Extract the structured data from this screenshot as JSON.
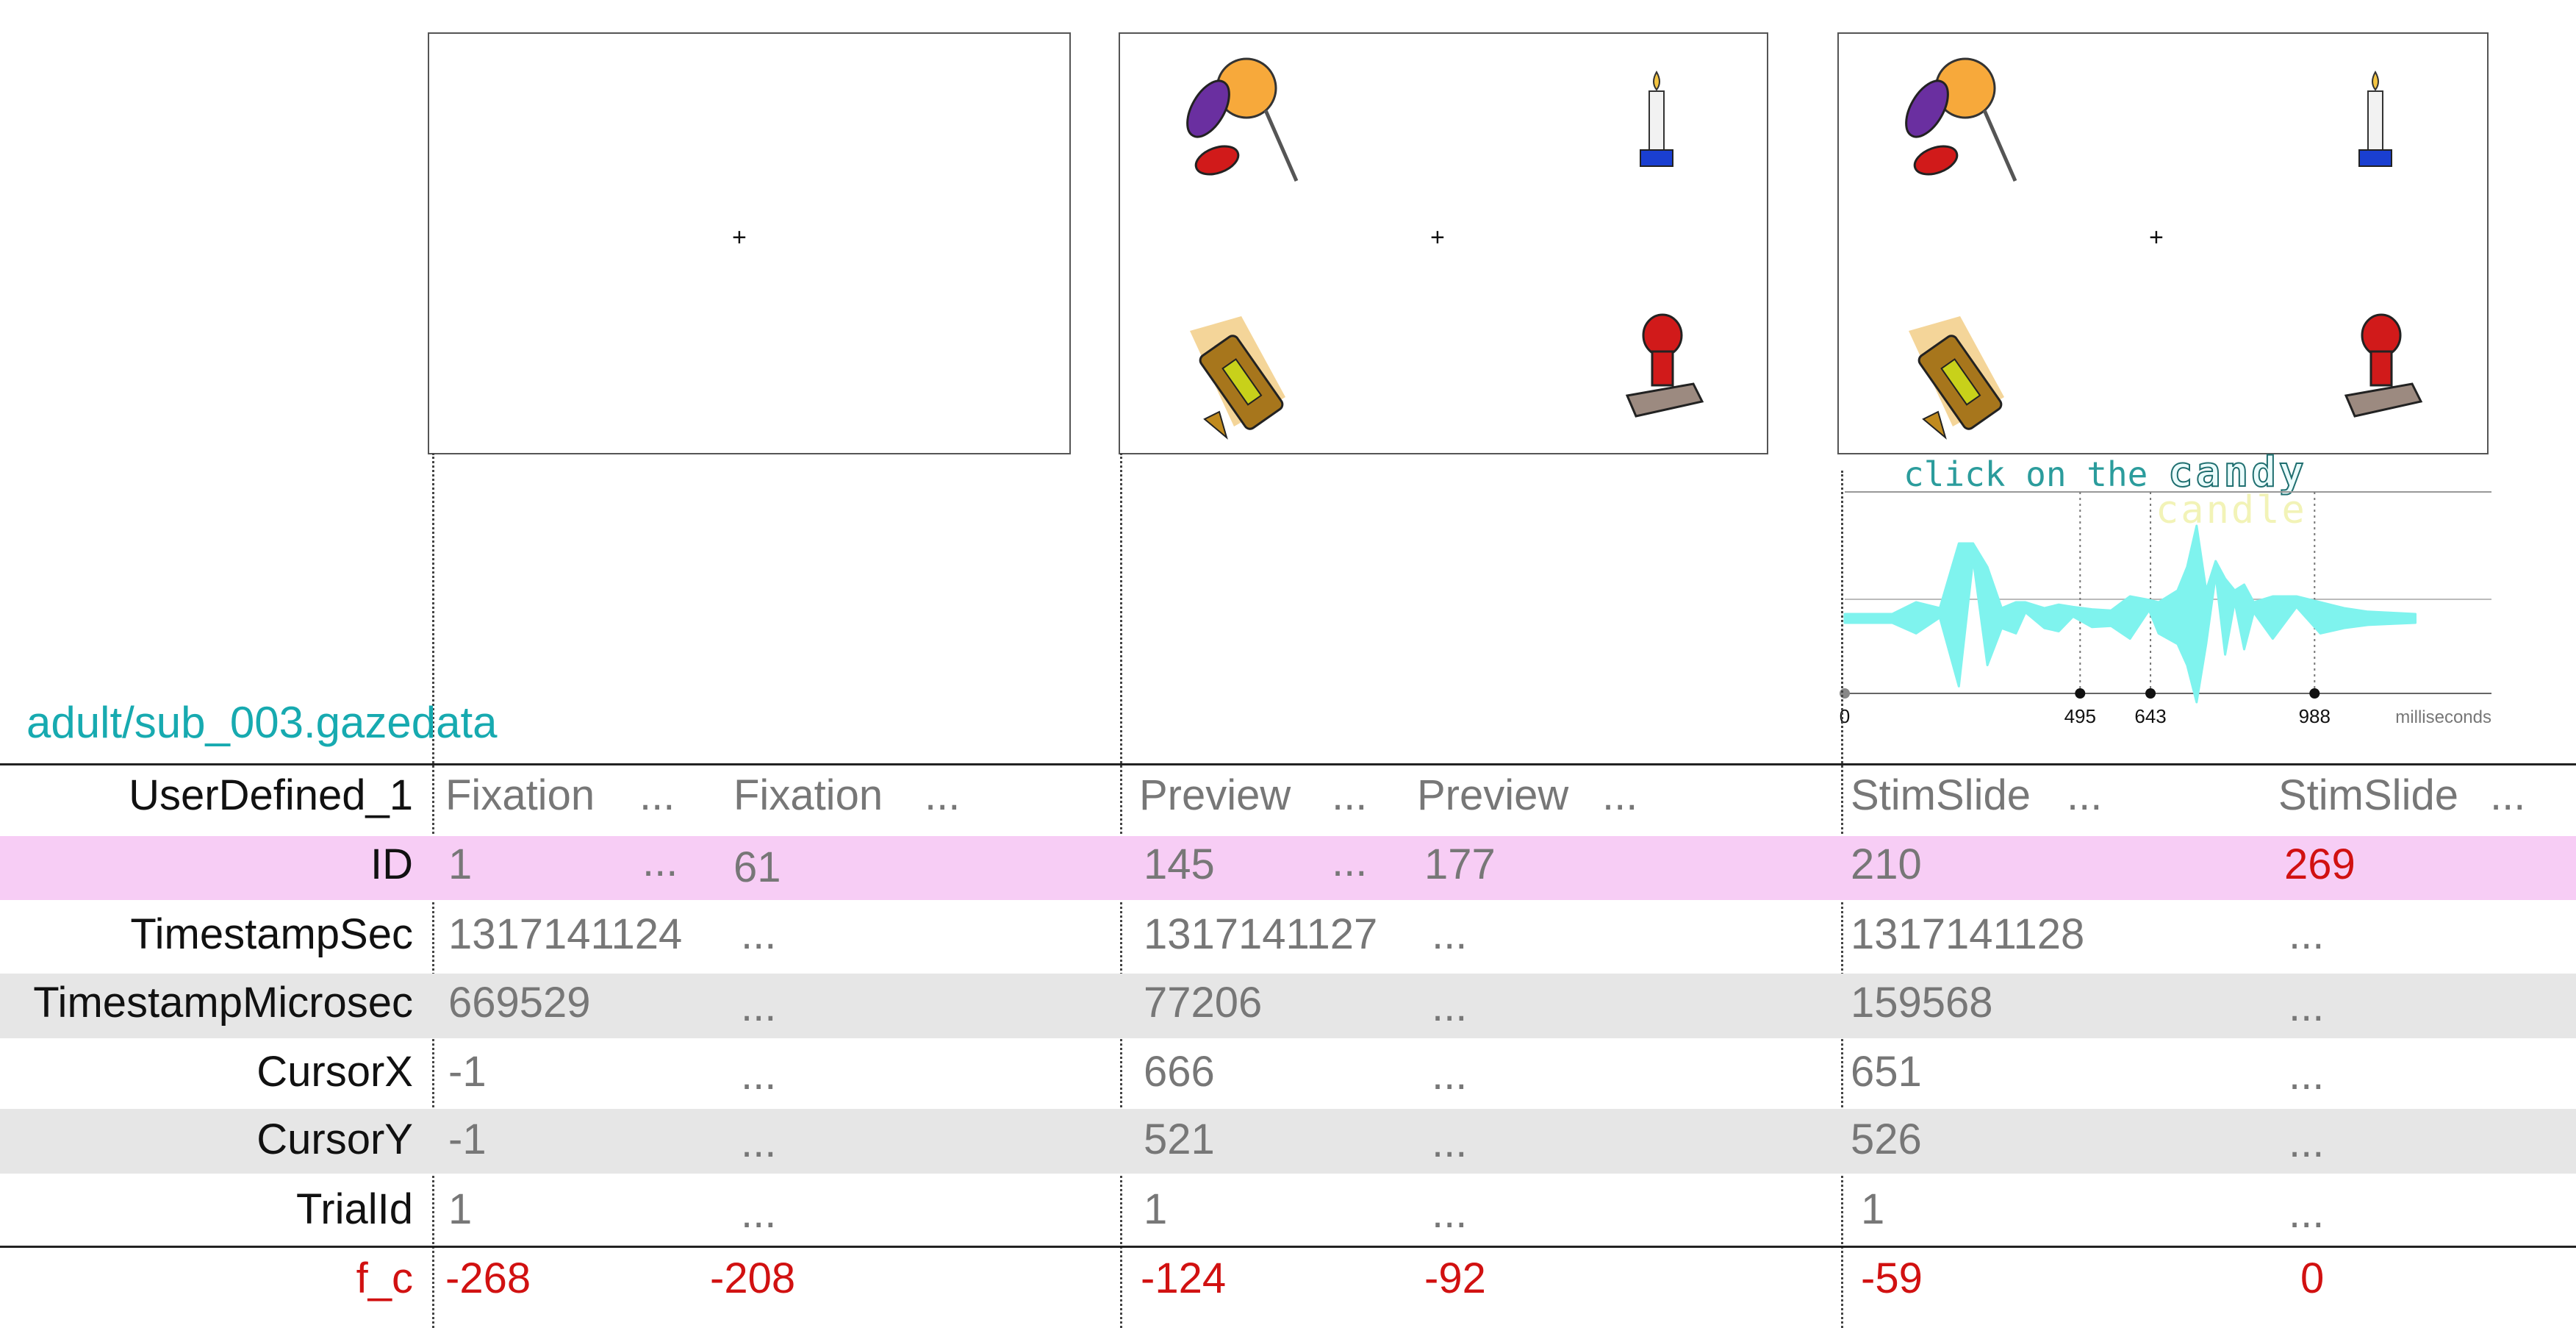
{
  "file_label": "adult/sub_003.gazedata",
  "panel3": {
    "caption": "click on the candy",
    "caption_prefix": "click on the",
    "target_word": "candy",
    "distractor_word": "candle",
    "fixation_mark": "+"
  },
  "chart_data": {
    "type": "line",
    "title": "",
    "xlabel": "milliseconds",
    "ylabel": "",
    "x_ticks": [
      "0",
      "495",
      "643",
      "988"
    ],
    "xlim": [
      0,
      1360
    ],
    "series": [
      {
        "color": "#7ff3ee",
        "x": [
          0,
          100,
          150,
          200,
          240,
          270,
          300,
          330,
          360,
          380,
          420,
          450,
          480,
          520,
          560,
          600,
          640,
          660,
          700,
          720,
          740,
          760,
          780,
          800,
          820,
          840,
          860,
          900,
          950,
          1000,
          1050,
          1100,
          1150,
          1200
        ],
        "y": [
          0,
          0,
          10,
          -5,
          60,
          -60,
          40,
          5,
          10,
          -10,
          5,
          8,
          -6,
          4,
          3,
          15,
          -12,
          10,
          20,
          40,
          75,
          20,
          -45,
          30,
          -20,
          25,
          -10,
          15,
          -15,
          10,
          5,
          2,
          1,
          0
        ]
      }
    ]
  },
  "table": {
    "row_labels": [
      "UserDefined_1",
      "ID",
      "TimestampSec",
      "TimestampMicrosec",
      "CursorX",
      "CursorY",
      "TrialId",
      "f_c"
    ],
    "columns": [
      {
        "values": [
          "Fixation",
          "1",
          "1317141124",
          "669529",
          "-1",
          "-1",
          "1",
          "-268"
        ]
      },
      {
        "values": [
          "...",
          "..."
        ]
      },
      {
        "values": [
          "Fixation",
          "61",
          "...",
          "...",
          "...",
          "...",
          "...",
          "-208"
        ]
      },
      {
        "values": [
          "..."
        ]
      },
      {
        "values": [
          "Preview",
          "145",
          "1317141127",
          "77206",
          "666",
          "521",
          "1",
          "-124"
        ]
      },
      {
        "values": [
          "...",
          "..."
        ]
      },
      {
        "values": [
          "Preview",
          "177",
          "...",
          "...",
          "...",
          "...",
          "...",
          "-92"
        ]
      },
      {
        "values": [
          "..."
        ]
      },
      {
        "values": [
          "StimSlide",
          "210",
          "1317141128",
          "159568",
          "651",
          "526",
          "1",
          "-59"
        ]
      },
      {
        "values": [
          "..."
        ]
      },
      {
        "values": [
          "StimSlide",
          "269",
          "...",
          "...",
          "...",
          "...",
          "...",
          "0"
        ]
      },
      {
        "values": [
          "..."
        ]
      }
    ]
  },
  "colors": {
    "highlight_row": "#f7cdf5",
    "alt_row": "#e6e6e6",
    "file_label": "#17aab0",
    "red": "#d11111",
    "trace": "#7ff3ee"
  },
  "icons": [
    "candy-icon",
    "candle-icon",
    "level-tool-icon",
    "stamp-icon"
  ]
}
